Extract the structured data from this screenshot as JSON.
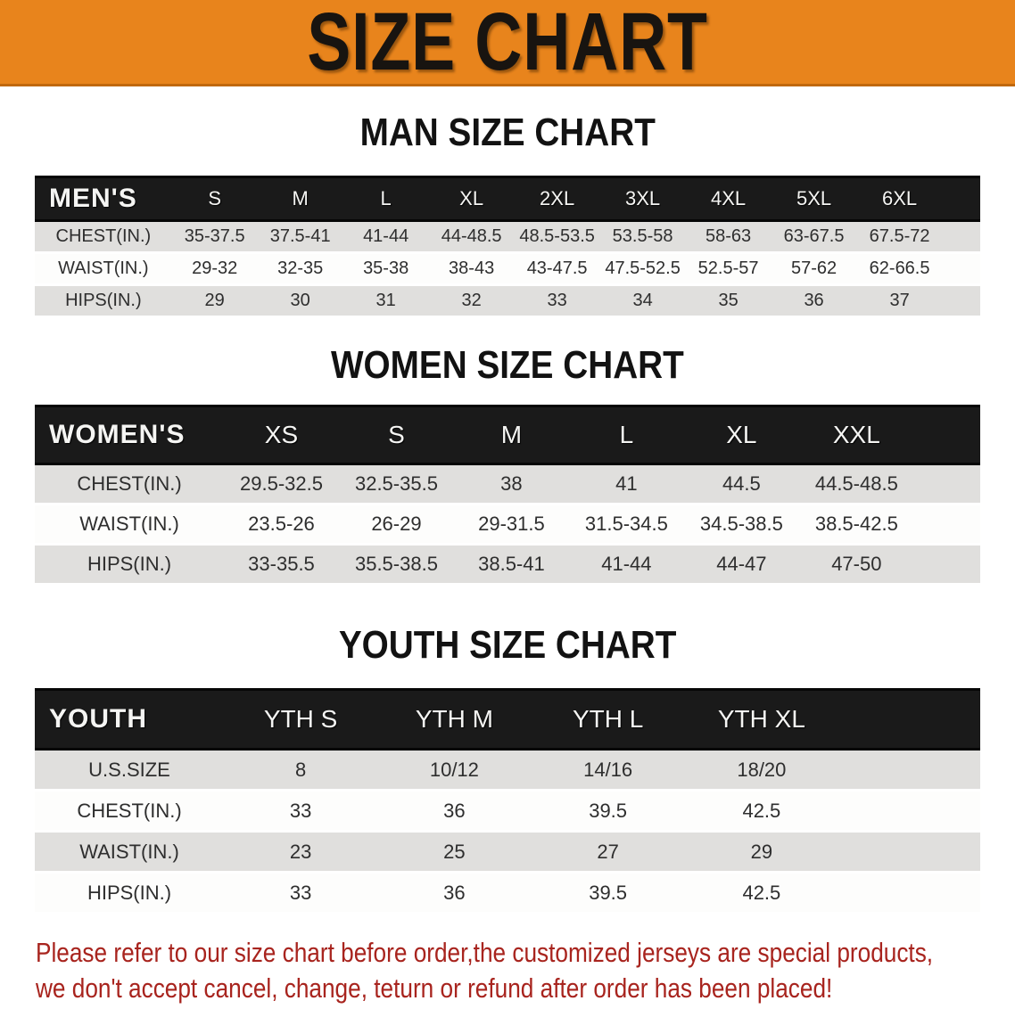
{
  "banner": {
    "title": "SIZE CHART",
    "bg_color": "#E8841C",
    "text_color": "#181410"
  },
  "sections": [
    {
      "heading": "MAN SIZE CHART",
      "table": {
        "label": "MEN'S",
        "columns": [
          "S",
          "M",
          "L",
          "XL",
          "2XL",
          "3XL",
          "4XL",
          "5XL",
          "6XL"
        ],
        "rows": [
          {
            "label": "CHEST(IN.)",
            "values": [
              "35-37.5",
              "37.5-41",
              "41-44",
              "44-48.5",
              "48.5-53.5",
              "53.5-58",
              "58-63",
              "63-67.5",
              "67.5-72"
            ]
          },
          {
            "label": "WAIST(IN.)",
            "values": [
              "29-32",
              "32-35",
              "35-38",
              "38-43",
              "43-47.5",
              "47.5-52.5",
              "52.5-57",
              "57-62",
              "62-66.5"
            ]
          },
          {
            "label": "HIPS(IN.)",
            "values": [
              "29",
              "30",
              "31",
              "32",
              "33",
              "34",
              "35",
              "36",
              "37"
            ]
          }
        ]
      }
    },
    {
      "heading": "WOMEN SIZE CHART",
      "table": {
        "label": "WOMEN'S",
        "columns": [
          "XS",
          "S",
          "M",
          "L",
          "XL",
          "XXL"
        ],
        "rows": [
          {
            "label": "CHEST(IN.)",
            "values": [
              "29.5-32.5",
              "32.5-35.5",
              "38",
              "41",
              "44.5",
              "44.5-48.5"
            ]
          },
          {
            "label": "WAIST(IN.)",
            "values": [
              "23.5-26",
              "26-29",
              "29-31.5",
              "31.5-34.5",
              "34.5-38.5",
              "38.5-42.5"
            ]
          },
          {
            "label": "HIPS(IN.)",
            "values": [
              "33-35.5",
              "35.5-38.5",
              "38.5-41",
              "41-44",
              "44-47",
              "47-50"
            ]
          }
        ]
      }
    },
    {
      "heading": "YOUTH SIZE CHART",
      "table": {
        "label": "YOUTH",
        "columns": [
          "YTH S",
          "YTH M",
          "YTH L",
          "YTH XL"
        ],
        "rows": [
          {
            "label": "U.S.SIZE",
            "values": [
              "8",
              "10/12",
              "14/16",
              "18/20"
            ]
          },
          {
            "label": "CHEST(IN.)",
            "values": [
              "33",
              "36",
              "39.5",
              "42.5"
            ]
          },
          {
            "label": "WAIST(IN.)",
            "values": [
              "23",
              "25",
              "27",
              "29"
            ]
          },
          {
            "label": "HIPS(IN.)",
            "values": [
              "33",
              "36",
              "39.5",
              "42.5"
            ]
          }
        ]
      }
    }
  ],
  "disclaimer": {
    "line1": "Please refer to our size chart before order,the customized jerseys are special products,",
    "line2": "we don't accept cancel, change, teturn or refund after order has been placed!",
    "color": "#A8241E"
  },
  "colors": {
    "banner_orange": "#E8841C",
    "banner_border": "#C0680E",
    "header_black": "#1A1A1A",
    "row_gray": "#E0DFDD",
    "row_white": "#FDFDFC",
    "table_text": "#2E2E2E",
    "disclaimer_red": "#A8241E"
  }
}
